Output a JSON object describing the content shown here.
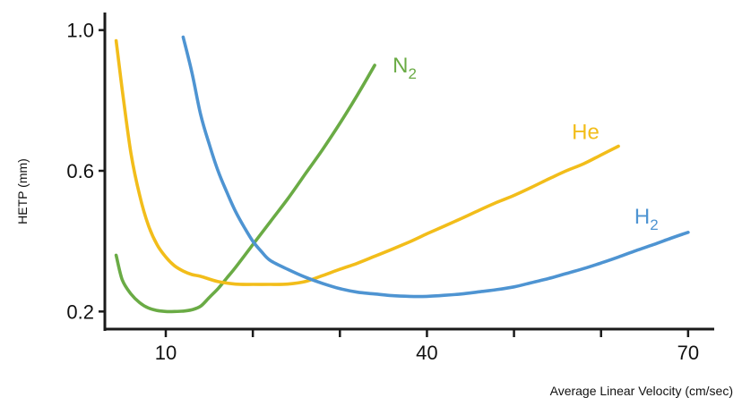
{
  "chart_data": {
    "type": "line",
    "title": "",
    "xlabel": "Average Linear Velocity (cm/sec)",
    "ylabel": "HETP (mm)",
    "xlim": [
      3,
      73
    ],
    "ylim": [
      0.15,
      1.05
    ],
    "x_ticks": [
      10,
      20,
      30,
      40,
      50,
      60,
      70
    ],
    "x_tick_labels": [
      "10",
      "",
      "",
      "40",
      "",
      "",
      "70"
    ],
    "y_ticks": [
      0.2,
      0.6,
      1.0
    ],
    "y_tick_labels": [
      "0.2",
      "0.6",
      "1.0"
    ],
    "grid": false,
    "legend": "inline labels at curve ends",
    "series": [
      {
        "name": "N2",
        "label_main": "N",
        "label_sub": "2",
        "color": "#6aab45",
        "x": [
          4.3,
          5,
          6,
          7,
          8,
          9,
          10,
          11,
          12,
          13,
          14,
          15,
          16,
          17,
          18,
          20,
          22,
          24,
          26,
          28,
          30,
          32,
          34
        ],
        "y": [
          0.36,
          0.29,
          0.25,
          0.225,
          0.21,
          0.203,
          0.2,
          0.2,
          0.201,
          0.205,
          0.215,
          0.24,
          0.265,
          0.295,
          0.325,
          0.39,
          0.455,
          0.52,
          0.59,
          0.66,
          0.735,
          0.815,
          0.9
        ]
      },
      {
        "name": "He",
        "label_main": "He",
        "label_sub": "",
        "color": "#f2bd1a",
        "x": [
          4.3,
          5,
          6,
          7,
          8,
          9,
          10,
          11,
          12,
          13,
          14,
          16,
          18,
          20,
          22,
          24,
          26,
          28,
          30,
          32,
          34,
          36,
          38,
          40,
          42,
          44,
          46,
          48,
          50,
          52,
          54,
          56,
          58,
          60,
          62
        ],
        "y": [
          0.97,
          0.83,
          0.65,
          0.53,
          0.445,
          0.39,
          0.355,
          0.33,
          0.315,
          0.305,
          0.3,
          0.285,
          0.278,
          0.277,
          0.277,
          0.278,
          0.285,
          0.302,
          0.32,
          0.337,
          0.357,
          0.377,
          0.398,
          0.421,
          0.443,
          0.465,
          0.488,
          0.51,
          0.53,
          0.553,
          0.577,
          0.6,
          0.62,
          0.645,
          0.67
        ]
      },
      {
        "name": "H2",
        "label_main": "H",
        "label_sub": "2",
        "color": "#4e94d2",
        "x": [
          12,
          13,
          14,
          15,
          16,
          17,
          18,
          19,
          20,
          21,
          22,
          24,
          26,
          28,
          30,
          32,
          34,
          36,
          38,
          40,
          42,
          44,
          46,
          48,
          50,
          52,
          54,
          56,
          58,
          60,
          62,
          64,
          66,
          68,
          70
        ],
        "y": [
          0.98,
          0.88,
          0.76,
          0.675,
          0.6,
          0.54,
          0.485,
          0.44,
          0.4,
          0.37,
          0.345,
          0.32,
          0.298,
          0.28,
          0.265,
          0.255,
          0.25,
          0.245,
          0.243,
          0.243,
          0.246,
          0.25,
          0.256,
          0.262,
          0.27,
          0.282,
          0.294,
          0.308,
          0.322,
          0.338,
          0.355,
          0.373,
          0.39,
          0.408,
          0.425
        ]
      }
    ]
  }
}
